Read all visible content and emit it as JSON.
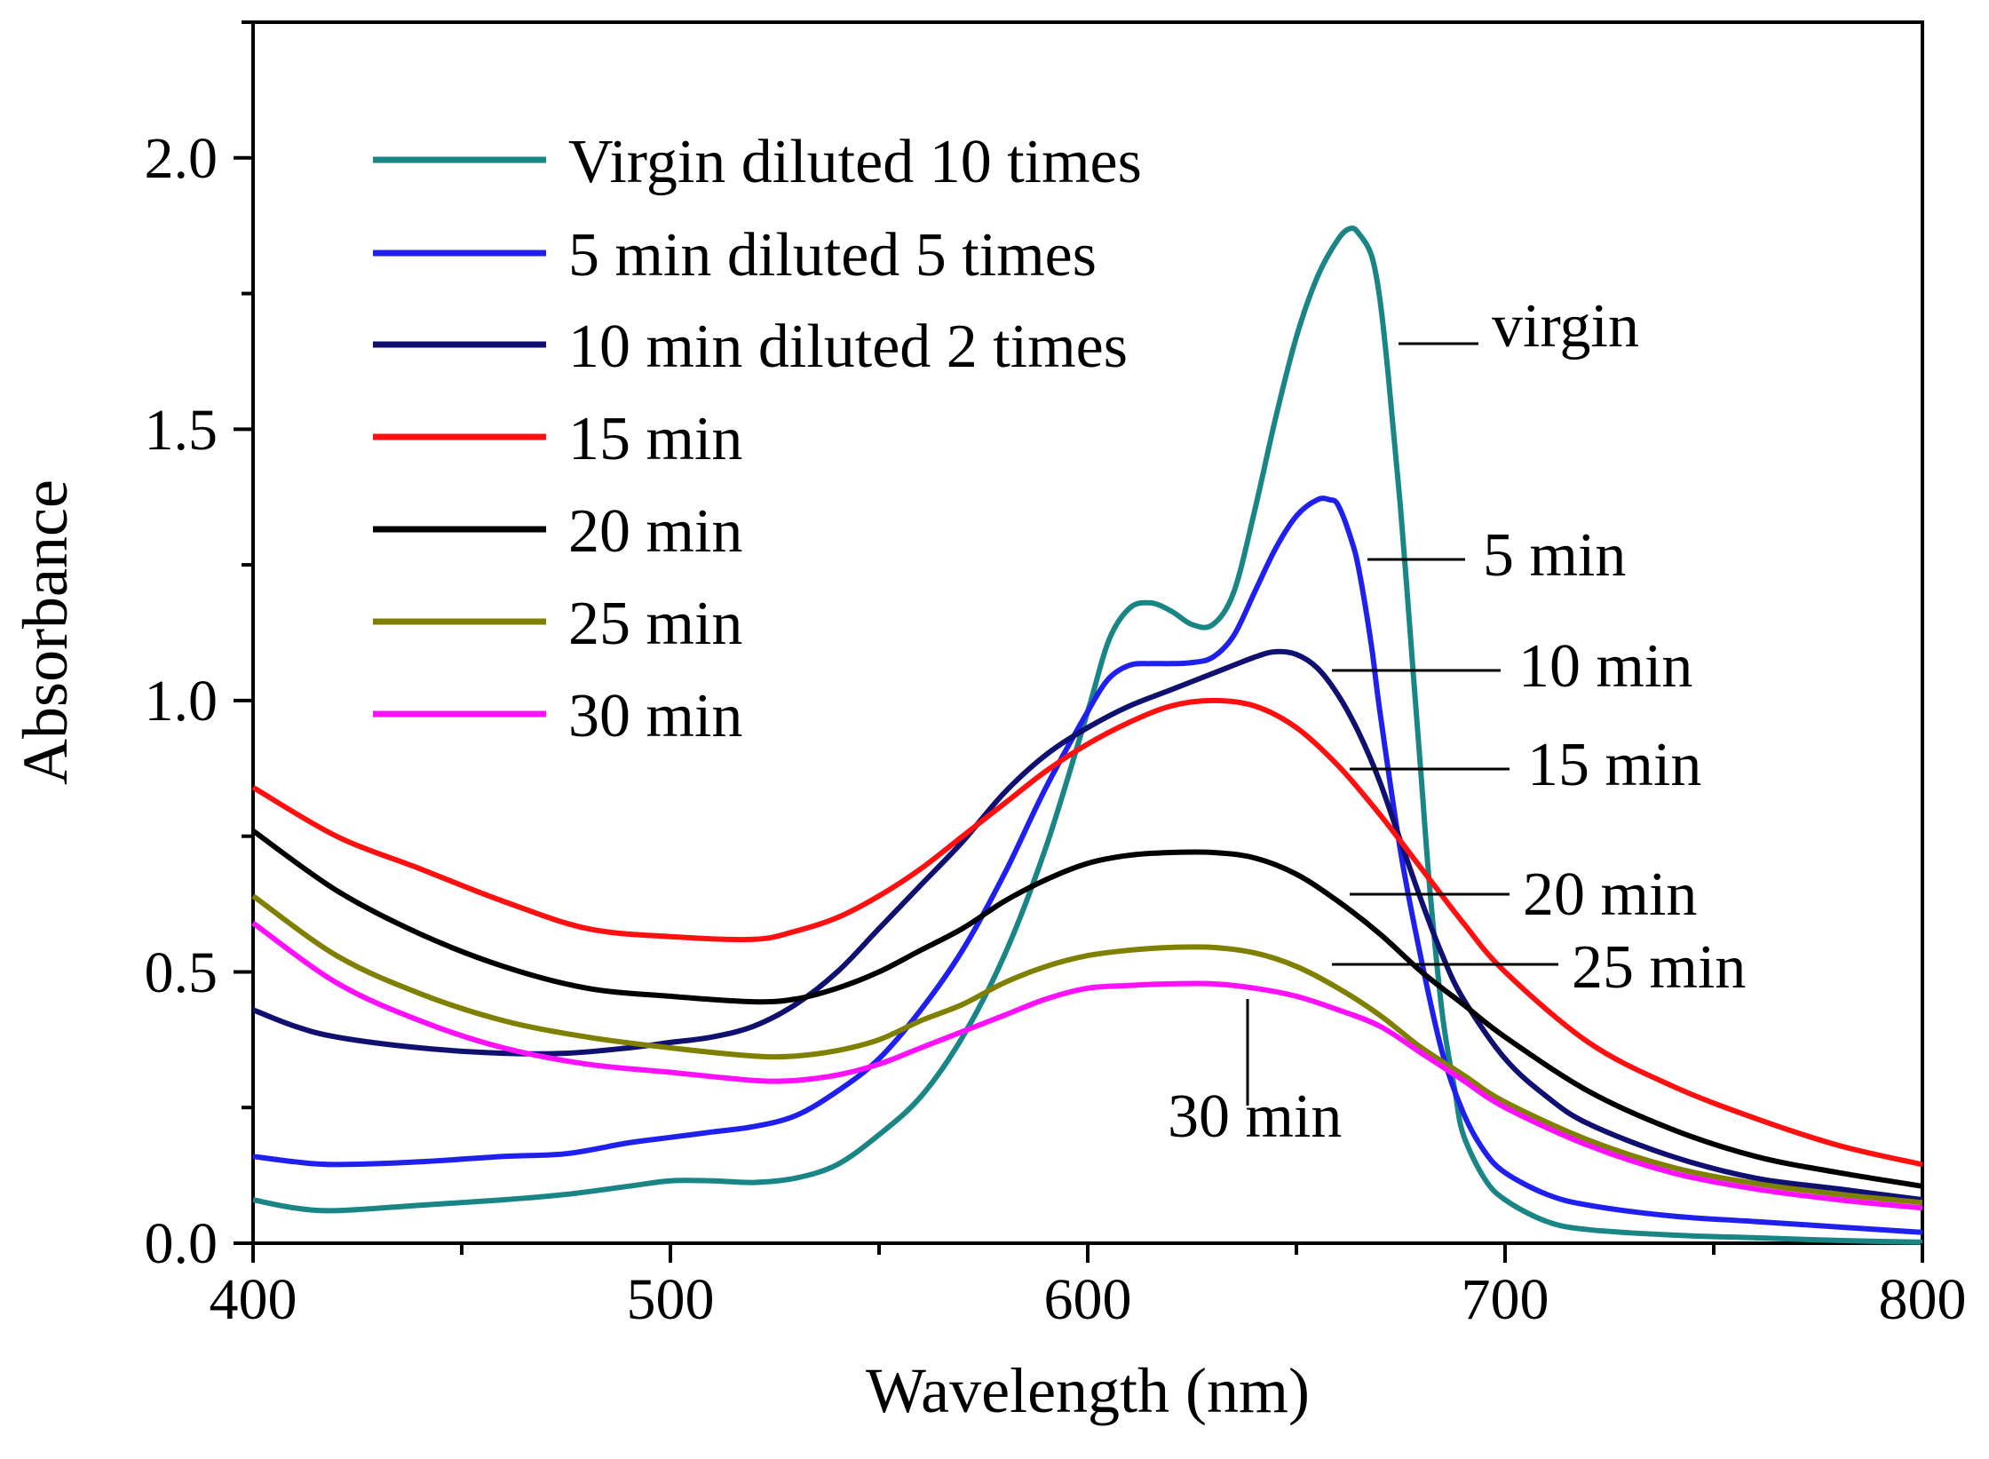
{
  "chart_data": {
    "type": "line",
    "title": "",
    "xlabel": "Wavelength (nm)",
    "ylabel": "Absorbance",
    "xlim": [
      400,
      800
    ],
    "ylim": [
      0,
      2.25
    ],
    "xticks": [
      400,
      500,
      600,
      700,
      800
    ],
    "xtick_labels": [
      "400",
      "500",
      "600",
      "700",
      "800"
    ],
    "yticks": [
      0,
      0.5,
      1.0,
      1.5,
      2.0
    ],
    "ytick_labels": [
      "0.0",
      "0.5",
      "1.0",
      "1.5",
      "2.0"
    ],
    "grid": false,
    "legend_position": "top-left",
    "series": [
      {
        "name": "Virgin diluted 10 times",
        "color": "#1a8585",
        "x": [
          400,
          410,
          420,
          440,
          460,
          475,
          490,
          500,
          510,
          520,
          530,
          540,
          550,
          560,
          570,
          580,
          590,
          600,
          605,
          610,
          615,
          620,
          625,
          630,
          635,
          640,
          645,
          650,
          655,
          660,
          663,
          665,
          668,
          670,
          672,
          675,
          678,
          680,
          682,
          685,
          688,
          690,
          695,
          700,
          710,
          720,
          740,
          760,
          780,
          800
        ],
        "y": [
          0.08,
          0.065,
          0.06,
          0.07,
          0.08,
          0.09,
          0.105,
          0.115,
          0.115,
          0.112,
          0.12,
          0.145,
          0.2,
          0.27,
          0.38,
          0.53,
          0.73,
          0.98,
          1.11,
          1.17,
          1.18,
          1.165,
          1.14,
          1.14,
          1.2,
          1.35,
          1.52,
          1.67,
          1.78,
          1.85,
          1.87,
          1.86,
          1.82,
          1.74,
          1.6,
          1.35,
          1.05,
          0.85,
          0.65,
          0.42,
          0.28,
          0.2,
          0.12,
          0.08,
          0.04,
          0.025,
          0.015,
          0.01,
          0.005,
          0.002
        ]
      },
      {
        "name": "5 min diluted 5 times",
        "color": "#2020ee",
        "x": [
          400,
          410,
          420,
          440,
          460,
          475,
          490,
          500,
          510,
          520,
          530,
          540,
          550,
          560,
          570,
          580,
          590,
          600,
          605,
          610,
          615,
          620,
          625,
          630,
          635,
          640,
          645,
          650,
          655,
          658,
          660,
          663,
          665,
          668,
          670,
          675,
          680,
          685,
          690,
          695,
          700,
          710,
          720,
          740,
          760,
          780,
          800
        ],
        "y": [
          0.16,
          0.15,
          0.145,
          0.15,
          0.16,
          0.165,
          0.185,
          0.195,
          0.205,
          0.215,
          0.235,
          0.28,
          0.34,
          0.43,
          0.54,
          0.68,
          0.84,
          0.98,
          1.04,
          1.065,
          1.068,
          1.068,
          1.07,
          1.08,
          1.12,
          1.2,
          1.28,
          1.34,
          1.37,
          1.37,
          1.36,
          1.3,
          1.24,
          1.1,
          0.98,
          0.72,
          0.52,
          0.35,
          0.24,
          0.17,
          0.13,
          0.09,
          0.07,
          0.05,
          0.04,
          0.03,
          0.02
        ]
      },
      {
        "name": "10 min diluted 2 times",
        "color": "#101070",
        "x": [
          400,
          410,
          420,
          440,
          460,
          475,
          490,
          500,
          510,
          520,
          530,
          540,
          550,
          560,
          570,
          580,
          590,
          600,
          610,
          620,
          630,
          640,
          645,
          650,
          655,
          660,
          665,
          670,
          675,
          680,
          685,
          690,
          700,
          710,
          720,
          740,
          760,
          780,
          800
        ],
        "y": [
          0.43,
          0.4,
          0.38,
          0.36,
          0.35,
          0.35,
          0.36,
          0.37,
          0.38,
          0.4,
          0.44,
          0.5,
          0.58,
          0.66,
          0.74,
          0.83,
          0.9,
          0.95,
          0.99,
          1.02,
          1.05,
          1.08,
          1.09,
          1.085,
          1.06,
          1.01,
          0.94,
          0.85,
          0.74,
          0.63,
          0.53,
          0.45,
          0.34,
          0.27,
          0.22,
          0.16,
          0.12,
          0.1,
          0.08
        ]
      },
      {
        "name": "15 min",
        "color": "#ff1010",
        "x": [
          400,
          420,
          440,
          460,
          480,
          500,
          520,
          530,
          540,
          550,
          560,
          570,
          580,
          590,
          600,
          610,
          620,
          630,
          640,
          650,
          660,
          670,
          680,
          690,
          700,
          720,
          740,
          760,
          780,
          800
        ],
        "y": [
          0.84,
          0.75,
          0.69,
          0.63,
          0.58,
          0.565,
          0.56,
          0.575,
          0.6,
          0.64,
          0.69,
          0.75,
          0.81,
          0.87,
          0.92,
          0.96,
          0.99,
          1.0,
          0.99,
          0.95,
          0.88,
          0.79,
          0.69,
          0.59,
          0.5,
          0.37,
          0.29,
          0.23,
          0.18,
          0.145
        ]
      },
      {
        "name": "20 min",
        "color": "#000000",
        "x": [
          400,
          420,
          440,
          460,
          480,
          500,
          520,
          530,
          540,
          550,
          560,
          570,
          580,
          590,
          600,
          610,
          620,
          630,
          640,
          650,
          660,
          670,
          680,
          690,
          700,
          720,
          740,
          760,
          780,
          800
        ],
        "y": [
          0.76,
          0.65,
          0.57,
          0.51,
          0.47,
          0.455,
          0.445,
          0.45,
          0.47,
          0.5,
          0.54,
          0.58,
          0.63,
          0.67,
          0.7,
          0.715,
          0.72,
          0.72,
          0.71,
          0.68,
          0.63,
          0.57,
          0.5,
          0.44,
          0.38,
          0.28,
          0.21,
          0.16,
          0.13,
          0.105
        ]
      },
      {
        "name": "25 min",
        "color": "#808000",
        "x": [
          400,
          420,
          440,
          460,
          480,
          500,
          520,
          530,
          540,
          550,
          560,
          570,
          580,
          590,
          600,
          610,
          620,
          630,
          640,
          650,
          660,
          670,
          680,
          690,
          700,
          720,
          740,
          760,
          780,
          800
        ],
        "y": [
          0.64,
          0.53,
          0.46,
          0.41,
          0.38,
          0.36,
          0.345,
          0.345,
          0.355,
          0.375,
          0.41,
          0.44,
          0.48,
          0.51,
          0.53,
          0.54,
          0.545,
          0.545,
          0.535,
          0.51,
          0.47,
          0.42,
          0.36,
          0.31,
          0.26,
          0.19,
          0.14,
          0.11,
          0.09,
          0.075
        ]
      },
      {
        "name": "30 min",
        "color": "#ff10ff",
        "x": [
          400,
          420,
          440,
          460,
          480,
          500,
          520,
          530,
          540,
          550,
          560,
          570,
          580,
          590,
          600,
          610,
          620,
          630,
          640,
          650,
          660,
          670,
          680,
          690,
          700,
          720,
          740,
          760,
          780,
          800
        ],
        "y": [
          0.59,
          0.48,
          0.41,
          0.36,
          0.33,
          0.315,
          0.3,
          0.3,
          0.31,
          0.33,
          0.36,
          0.39,
          0.42,
          0.45,
          0.47,
          0.475,
          0.478,
          0.478,
          0.47,
          0.455,
          0.43,
          0.4,
          0.35,
          0.3,
          0.25,
          0.18,
          0.13,
          0.1,
          0.08,
          0.065
        ]
      }
    ],
    "annotations": [
      {
        "text": "virgin",
        "x": 683
      },
      {
        "text": "5 min",
        "x": 683
      },
      {
        "text": "10 min",
        "x": 683
      },
      {
        "text": "15 min",
        "x": 683
      },
      {
        "text": "20 min",
        "x": 683
      },
      {
        "text": "25 min",
        "x": 683
      },
      {
        "text": "30 min",
        "x": 635
      }
    ]
  }
}
